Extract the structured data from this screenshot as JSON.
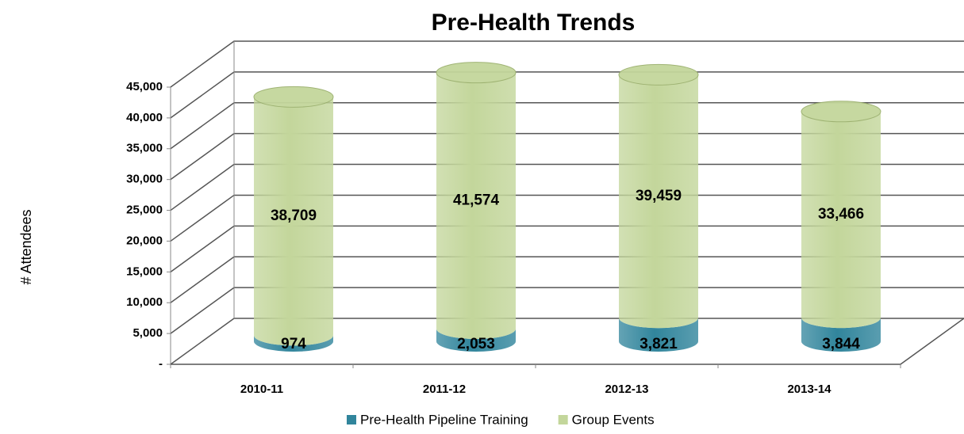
{
  "chart_data": {
    "type": "bar3d_stacked",
    "title": "Pre-Health Trends",
    "y_label": "# Attendees",
    "categories": [
      "2010-11",
      "2011-12",
      "2012-13",
      "2013-14"
    ],
    "series": [
      {
        "name": "Pre-Health Pipeline Training",
        "color": "#31859c",
        "values": [
          974,
          2053,
          3821,
          3844
        ],
        "value_labels": [
          "974",
          "2,053",
          "3,821",
          "3,844"
        ]
      },
      {
        "name": "Group Events",
        "color": "#c3d69b",
        "values": [
          38709,
          41574,
          39459,
          33466
        ],
        "value_labels": [
          "38,709",
          "41,574",
          "39,459",
          "33,466"
        ]
      }
    ],
    "ylim": [
      0,
      45000
    ],
    "yticks": [
      {
        "value": 0,
        "label": "-"
      },
      {
        "value": 5000,
        "label": "5,000"
      },
      {
        "value": 10000,
        "label": "10,000"
      },
      {
        "value": 15000,
        "label": "15,000"
      },
      {
        "value": 20000,
        "label": "20,000"
      },
      {
        "value": 25000,
        "label": "25,000"
      },
      {
        "value": 30000,
        "label": "30,000"
      },
      {
        "value": 35000,
        "label": "35,000"
      },
      {
        "value": 40000,
        "label": "40,000"
      },
      {
        "value": 45000,
        "label": "45,000"
      }
    ],
    "grid": true,
    "legend": "bottom"
  }
}
